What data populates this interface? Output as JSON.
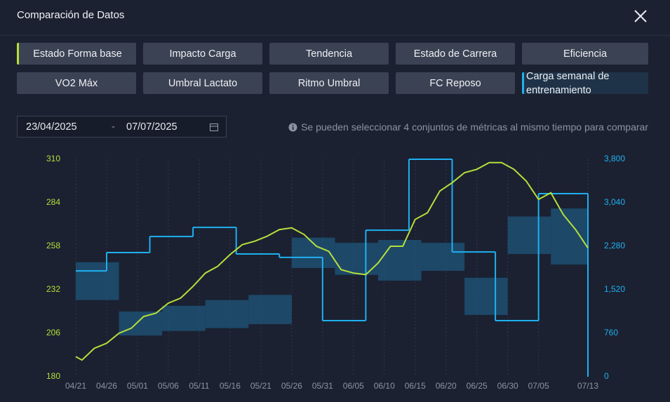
{
  "header": {
    "title": "Comparación de Datos"
  },
  "metrics": [
    {
      "label": "Estado Forma base",
      "color": "#b5e03a"
    },
    {
      "label": "Impacto Carga"
    },
    {
      "label": "Tendencia"
    },
    {
      "label": "Estado de Carrera"
    },
    {
      "label": "Eficiencia"
    },
    {
      "label": "VO2 Máx"
    },
    {
      "label": "Umbral Lactato"
    },
    {
      "label": "Ritmo Umbral"
    },
    {
      "label": "FC Reposo"
    },
    {
      "label": "Carga semanal de entrenamiento",
      "color": "#1fb0f0"
    }
  ],
  "date_range": {
    "from": "23/04/2025",
    "separator": "-",
    "to": "07/07/2025"
  },
  "note": "Se pueden seleccionar 4 conjuntos de métricas al mismo tiempo para comparar",
  "chart_data": {
    "type": "line",
    "xticks": [
      "04/21",
      "04/26",
      "05/01",
      "05/06",
      "05/11",
      "05/16",
      "05/21",
      "05/26",
      "05/31",
      "06/05",
      "06/10",
      "06/15",
      "06/20",
      "06/25",
      "06/30",
      "07/05",
      "07/13"
    ],
    "ylim": [
      180,
      310
    ],
    "yticks": [
      180,
      206,
      232,
      258,
      284,
      310
    ],
    "ycolor": "#b5e03a",
    "y2lim": [
      0,
      3800
    ],
    "y2ticks": [
      0,
      760,
      {
        "value": 1520,
        "label": "1,520"
      },
      {
        "value": 2280,
        "label": "2,280"
      },
      {
        "value": 3040,
        "label": "3,040"
      },
      {
        "value": 3800,
        "label": "3,800"
      }
    ],
    "y2color": "#1fb0f0",
    "grid": true,
    "series": [
      {
        "color": "#b5e03a",
        "x": [
          "04/21",
          "04/22",
          "04/24",
          "04/26",
          "04/28",
          "04/30",
          "05/02",
          "05/04",
          "05/06",
          "05/08",
          "05/10",
          "05/12",
          "05/14",
          "05/16",
          "05/18",
          "05/20",
          "05/22",
          "05/24",
          "05/26",
          "05/28",
          "05/30",
          "06/01",
          "06/03",
          "06/05",
          "06/07",
          "06/09",
          "06/11",
          "06/13",
          "06/15",
          "06/17",
          "06/19",
          "06/21",
          "06/23",
          "06/25",
          "06/27",
          "06/29",
          "07/01",
          "07/03",
          "07/05",
          "07/07",
          "07/09",
          "07/11",
          "07/13"
        ],
        "values": [
          192,
          190,
          197,
          200,
          206,
          209,
          216,
          218,
          224,
          227,
          234,
          242,
          246,
          253,
          259,
          261,
          264,
          268,
          269,
          265,
          258,
          255,
          244,
          242,
          241,
          248,
          258,
          258,
          274,
          278,
          291,
          296,
          302,
          304,
          308,
          308,
          304,
          297,
          286,
          290,
          277,
          268,
          257
        ]
      },
      {
        "color": "#1fb0f0",
        "axis": "y2",
        "step": true,
        "x": [
          "04/21",
          "04/26",
          "05/03",
          "05/10",
          "05/17",
          "05/24",
          "05/31",
          "06/07",
          "06/14",
          "06/21",
          "06/28",
          "07/05",
          "07/12",
          "07/13"
        ],
        "values": [
          1850,
          2170,
          2450,
          2610,
          2145,
          2085,
          980,
          2560,
          3800,
          2180,
          980,
          3200,
          3200,
          0
        ]
      }
    ],
    "band": {
      "color": "#1e5a80",
      "axis": "y2",
      "x": [
        "04/21",
        "04/28",
        "05/05",
        "05/12",
        "05/19",
        "05/26",
        "06/02",
        "06/09",
        "06/16",
        "06/23",
        "06/30",
        "07/07",
        "07/13"
      ],
      "upper": [
        2000,
        1140,
        1240,
        1340,
        1430,
        2430,
        2340,
        2390,
        2340,
        1730,
        2800,
        2940,
        2940
      ],
      "lower": [
        1340,
        720,
        800,
        850,
        920,
        1900,
        1780,
        1680,
        1850,
        1080,
        2145,
        1960,
        1960
      ]
    }
  }
}
